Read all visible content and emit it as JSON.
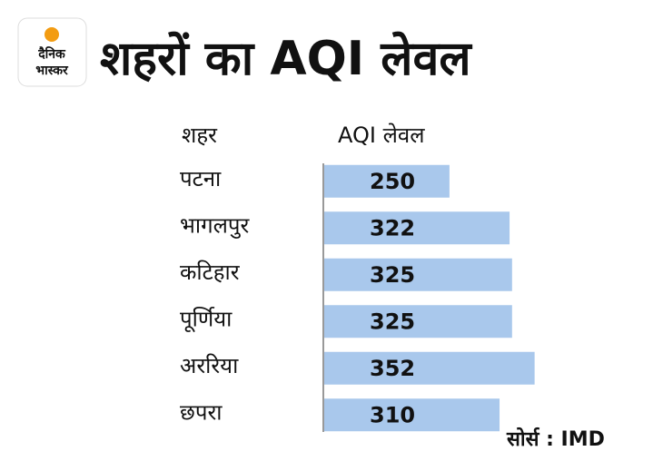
{
  "logo": {
    "line1": "दैनिक",
    "line2": "भास्कर"
  },
  "chart_data": {
    "type": "bar",
    "orientation": "horizontal",
    "title": "शहरों का AQI लेवल",
    "category_header": "शहर",
    "value_header": "AQI लेवल",
    "categories": [
      "पटना",
      "भागलपुर",
      "कटिहार",
      "पूर्णिया",
      "अररिया",
      "छपरा"
    ],
    "values": [
      250,
      322,
      325,
      325,
      352,
      310
    ],
    "color": "#a9c8ec",
    "xlim": [
      100,
      360
    ],
    "source": "सोर्स : IMD"
  }
}
